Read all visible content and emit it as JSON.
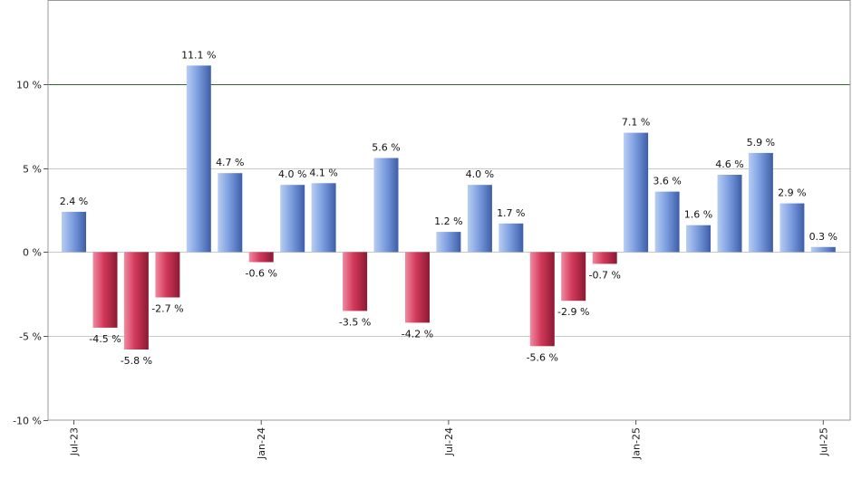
{
  "chart_data": {
    "type": "bar",
    "title": "",
    "xlabel": "",
    "ylabel": "",
    "ylim": [
      -10,
      15
    ],
    "y_ticks": [
      -10,
      -5,
      0,
      5,
      10
    ],
    "y_tick_labels": [
      "-10 %",
      "-5 %",
      "0 %",
      "5 %",
      "10 %"
    ],
    "reference_line": 10,
    "x_tick_labels": [
      {
        "label": "Jul-23",
        "index": 0
      },
      {
        "label": "Jan-24",
        "index": 6
      },
      {
        "label": "Jul-24",
        "index": 12
      },
      {
        "label": "Jan-25",
        "index": 18
      },
      {
        "label": "Jul-25",
        "index": 24
      }
    ],
    "values": [
      2.4,
      -4.5,
      -5.8,
      -2.7,
      11.1,
      4.7,
      -0.6,
      4.0,
      4.1,
      -3.5,
      5.6,
      -4.2,
      1.2,
      4.0,
      1.7,
      -5.6,
      -2.9,
      -0.7,
      7.1,
      3.6,
      1.6,
      4.6,
      5.9,
      2.9,
      0.3
    ],
    "data_labels": [
      "2.4 %",
      "-4.5 %",
      "-5.8 %",
      "-2.7 %",
      "11.1 %",
      "4.7 %",
      "-0.6 %",
      "4.0 %",
      "4.1 %",
      "-3.5 %",
      "5.6 %",
      "-4.2 %",
      "1.2 %",
      "4.0 %",
      "1.7 %",
      "-5.6 %",
      "-2.9 %",
      "-0.7 %",
      "7.1 %",
      "3.6 %",
      "1.6 %",
      "4.6 %",
      "5.9 %",
      "2.9 %",
      "0.3 %"
    ],
    "grid": true,
    "colors": {
      "positive": "#7a9ee0",
      "negative": "#c8324e",
      "reference_line": "#2e6b2e",
      "grid": "#c8c8c8",
      "axis": "#555555"
    }
  }
}
